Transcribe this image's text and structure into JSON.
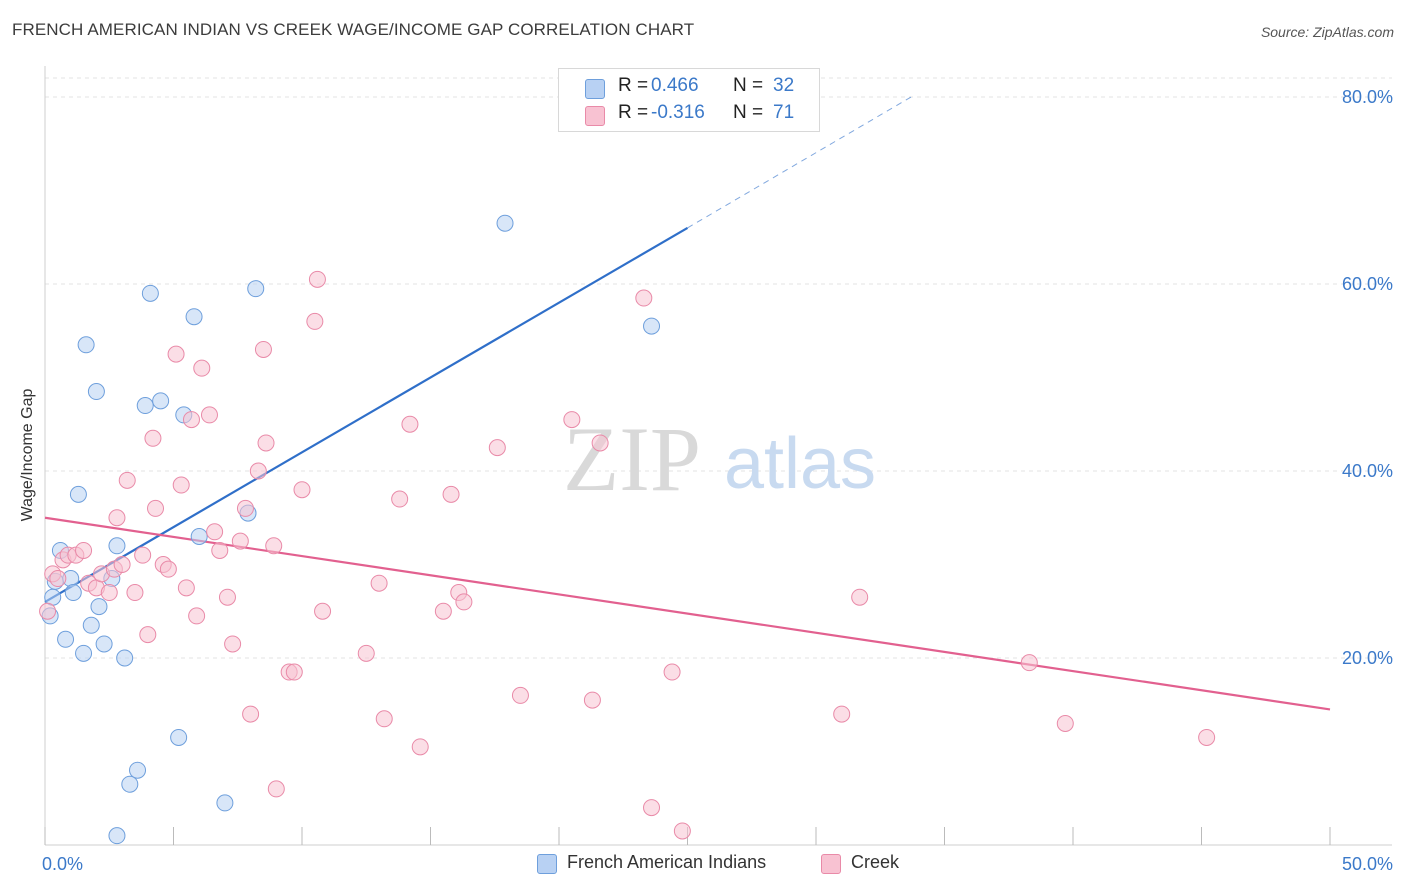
{
  "title": "FRENCH AMERICAN INDIAN VS CREEK WAGE/INCOME GAP CORRELATION CHART",
  "source": "Source: ZipAtlas.com",
  "watermark": {
    "zip": "ZIP",
    "atlas": "atlas"
  },
  "colors": {
    "blue_fill": "#b8d1f3",
    "blue_stroke": "#6e9fdc",
    "blue_line": "#2f6fc9",
    "pink_fill": "#f8c2d2",
    "pink_stroke": "#e98aa8",
    "pink_line": "#e2608f",
    "tick_label": "#3b79c9",
    "grid": "#e3e3e3"
  },
  "legend": {
    "rows": [
      {
        "r_label": "R =",
        "r_value": "0.466",
        "n_label": "N =",
        "n_value": "32"
      },
      {
        "r_label": "R =",
        "r_value": "-0.316",
        "n_label": "N =",
        "n_value": "71"
      }
    ]
  },
  "bottom_legend": [
    {
      "label": "French American Indians"
    },
    {
      "label": "Creek"
    }
  ],
  "chart_data": {
    "type": "scatter",
    "title": "FRENCH AMERICAN INDIAN VS CREEK WAGE/INCOME GAP CORRELATION CHART",
    "xlabel": "",
    "ylabel": "Wage/Income Gap",
    "xlim": [
      0,
      50
    ],
    "ylim": [
      0,
      80
    ],
    "x_tick_labels": [
      "0.0%",
      "50.0%"
    ],
    "y_ticks": [
      20,
      40,
      60,
      80
    ],
    "y_tick_labels": [
      "20.0%",
      "40.0%",
      "60.0%",
      "80.0%"
    ],
    "grid": true,
    "series": [
      {
        "name": "French American Indians",
        "r": 0.466,
        "n": 32,
        "trend": {
          "x0": 0.0,
          "y0": 26.0,
          "x1": 25.0,
          "y1": 66.0,
          "dash_x1": 33.7,
          "dash_y1": 80.0
        },
        "points": [
          [
            0.2,
            24.5
          ],
          [
            0.3,
            26.5
          ],
          [
            0.4,
            28.2
          ],
          [
            0.6,
            31.5
          ],
          [
            0.8,
            22.0
          ],
          [
            1.0,
            28.5
          ],
          [
            1.1,
            27.0
          ],
          [
            1.3,
            37.5
          ],
          [
            1.5,
            20.5
          ],
          [
            1.6,
            53.5
          ],
          [
            1.8,
            23.5
          ],
          [
            2.0,
            48.5
          ],
          [
            2.1,
            25.5
          ],
          [
            2.3,
            21.5
          ],
          [
            2.6,
            28.5
          ],
          [
            2.8,
            32.0
          ],
          [
            3.1,
            20.0
          ],
          [
            3.6,
            8.0
          ],
          [
            2.8,
            1.0
          ],
          [
            3.3,
            6.5
          ],
          [
            3.9,
            47.0
          ],
          [
            4.1,
            59.0
          ],
          [
            4.5,
            47.5
          ],
          [
            5.2,
            11.5
          ],
          [
            5.4,
            46.0
          ],
          [
            5.8,
            56.5
          ],
          [
            6.0,
            33.0
          ],
          [
            7.0,
            4.5
          ],
          [
            7.9,
            35.5
          ],
          [
            8.2,
            59.5
          ],
          [
            17.9,
            66.5
          ],
          [
            23.6,
            55.5
          ]
        ]
      },
      {
        "name": "Creek",
        "r": -0.316,
        "n": 71,
        "trend": {
          "x0": 0.0,
          "y0": 35.0,
          "x1": 50.0,
          "y1": 14.5
        },
        "points": [
          [
            0.1,
            25.0
          ],
          [
            0.3,
            29.0
          ],
          [
            0.5,
            28.5
          ],
          [
            0.7,
            30.5
          ],
          [
            0.9,
            31.0
          ],
          [
            1.2,
            31.0
          ],
          [
            1.5,
            31.5
          ],
          [
            1.7,
            28.0
          ],
          [
            2.0,
            27.5
          ],
          [
            2.2,
            29.0
          ],
          [
            2.5,
            27.0
          ],
          [
            2.7,
            29.5
          ],
          [
            2.8,
            35.0
          ],
          [
            3.0,
            30.0
          ],
          [
            3.2,
            39.0
          ],
          [
            3.5,
            27.0
          ],
          [
            3.8,
            31.0
          ],
          [
            4.0,
            22.5
          ],
          [
            4.2,
            43.5
          ],
          [
            4.3,
            36.0
          ],
          [
            4.6,
            30.0
          ],
          [
            4.8,
            29.5
          ],
          [
            5.1,
            52.5
          ],
          [
            5.3,
            38.5
          ],
          [
            5.5,
            27.5
          ],
          [
            5.7,
            45.5
          ],
          [
            5.9,
            24.5
          ],
          [
            6.1,
            51.0
          ],
          [
            6.4,
            46.0
          ],
          [
            6.6,
            33.5
          ],
          [
            6.8,
            31.5
          ],
          [
            7.1,
            26.5
          ],
          [
            7.3,
            21.5
          ],
          [
            7.6,
            32.5
          ],
          [
            7.8,
            36.0
          ],
          [
            8.0,
            14.0
          ],
          [
            8.3,
            40.0
          ],
          [
            8.5,
            53.0
          ],
          [
            8.6,
            43.0
          ],
          [
            8.9,
            32.0
          ],
          [
            9.0,
            6.0
          ],
          [
            9.5,
            18.5
          ],
          [
            9.7,
            18.5
          ],
          [
            10.0,
            38.0
          ],
          [
            10.5,
            56.0
          ],
          [
            10.6,
            60.5
          ],
          [
            10.8,
            25.0
          ],
          [
            12.5,
            20.5
          ],
          [
            13.0,
            28.0
          ],
          [
            13.2,
            13.5
          ],
          [
            13.8,
            37.0
          ],
          [
            14.6,
            10.5
          ],
          [
            14.2,
            45.0
          ],
          [
            15.5,
            25.0
          ],
          [
            15.8,
            37.5
          ],
          [
            16.1,
            27.0
          ],
          [
            16.3,
            26.0
          ],
          [
            17.6,
            42.5
          ],
          [
            18.5,
            16.0
          ],
          [
            20.5,
            45.5
          ],
          [
            21.3,
            15.5
          ],
          [
            21.6,
            43.0
          ],
          [
            23.3,
            58.5
          ],
          [
            23.6,
            4.0
          ],
          [
            24.8,
            1.5
          ],
          [
            24.4,
            18.5
          ],
          [
            31.0,
            14.0
          ],
          [
            31.7,
            26.5
          ],
          [
            38.3,
            19.5
          ],
          [
            39.7,
            13.0
          ],
          [
            45.2,
            11.5
          ]
        ]
      }
    ]
  }
}
